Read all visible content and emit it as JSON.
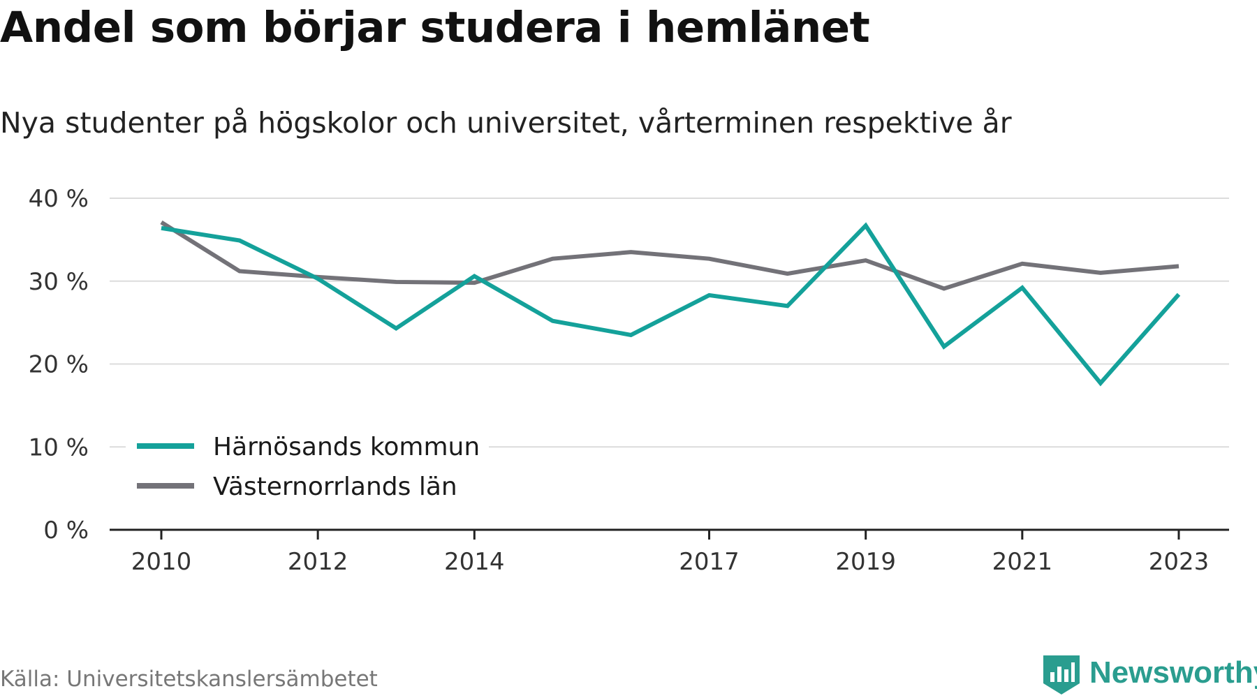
{
  "header": {
    "title": "Andel som börjar studera i hemlänet",
    "subtitle": "Nya studenter på högskolor och universitet, vårterminen respektive år"
  },
  "footer": {
    "source": "Källa: Universitetskanslersämbetet",
    "brand": "Newsworthy"
  },
  "chart_data": {
    "type": "line",
    "title": "Andel som börjar studera i hemlänet",
    "subtitle": "Nya studenter på högskolor och universitet, vårterminen respektive år",
    "x": [
      2010,
      2011,
      2012,
      2013,
      2014,
      2015,
      2016,
      2017,
      2018,
      2019,
      2020,
      2021,
      2022,
      2023
    ],
    "x_tick_labels": [
      "2010",
      "2012",
      "2014",
      "2017",
      "2019",
      "2021",
      "2023"
    ],
    "x_ticks": [
      2010,
      2012,
      2014,
      2017,
      2019,
      2021,
      2023
    ],
    "y_ticks": [
      0,
      10,
      20,
      30,
      40
    ],
    "y_tick_labels": [
      "0 %",
      "10 %",
      "20 %",
      "30 %",
      "40 %"
    ],
    "ylim": [
      0,
      40
    ],
    "grid": true,
    "legend_position": "bottom-left",
    "series": [
      {
        "name": "Härnösands kommun",
        "color": "#14a19a",
        "values": [
          36.4,
          34.9,
          30.3,
          24.3,
          30.6,
          25.2,
          23.5,
          28.3,
          27.0,
          36.7,
          22.1,
          29.2,
          17.7,
          28.4
        ]
      },
      {
        "name": "Västernorrlands län",
        "color": "#737278",
        "values": [
          37.1,
          31.2,
          30.5,
          29.9,
          29.8,
          32.7,
          33.5,
          32.7,
          30.9,
          32.5,
          29.1,
          32.1,
          31.0,
          31.8
        ]
      }
    ]
  }
}
